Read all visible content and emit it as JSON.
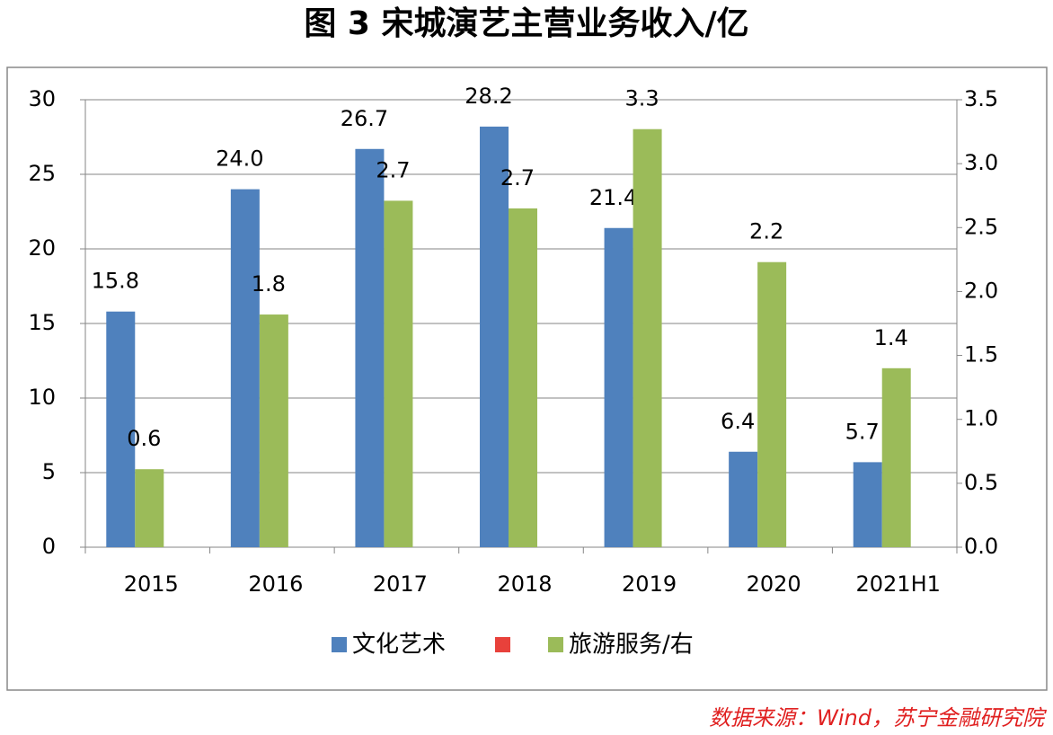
{
  "chart_data": {
    "type": "bar",
    "title": "图 3 宋城演艺主营业务收入/亿",
    "categories": [
      "2015",
      "2016",
      "2017",
      "2018",
      "2019",
      "2020",
      "2021H1"
    ],
    "series": [
      {
        "name": "文化艺术",
        "color": "#4f81bd",
        "values": [
          15.8,
          24,
          26.7,
          28.2,
          21.4,
          6.4,
          5.7
        ],
        "value_labels": [
          "15.8",
          "24.0",
          "26.7",
          "28.2",
          "21.4",
          "6.4",
          "5.7"
        ]
      },
      {
        "name": "旅游服务/右",
        "color": "#9bbb59",
        "axis": "y2",
        "values": [
          0.61,
          1.82,
          2.71,
          2.65,
          3.27,
          2.23,
          1.4
        ],
        "value_labels": [
          "0.6",
          "1.8",
          "2.7",
          "2.7",
          "3.3",
          "2.2",
          "1.4"
        ]
      }
    ],
    "ylim": [
      0,
      30
    ],
    "yticks": [
      0,
      5,
      10,
      15,
      20,
      25,
      30
    ],
    "y2lim": [
      0,
      3.5
    ],
    "y2ticks": [
      {
        "value": 0,
        "label": "0.0"
      },
      0.5,
      {
        "value": 1,
        "label": "1.0"
      },
      1.5,
      {
        "value": 2,
        "label": "2.0"
      },
      2.5,
      {
        "value": 3,
        "label": "3.0"
      },
      3.5
    ],
    "grid": true,
    "source": "数据来源：Wind，苏宁金融研究院"
  }
}
